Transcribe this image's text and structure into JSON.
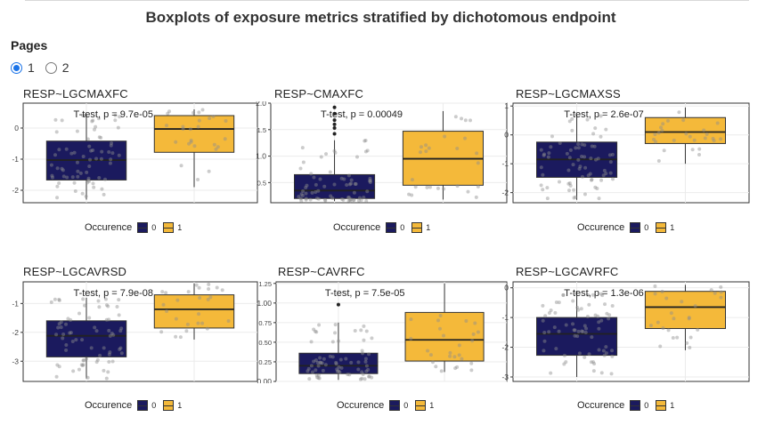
{
  "title": "Boxplots of exposure metrics stratified by dichotomous endpoint",
  "pages": {
    "label": "Pages",
    "options": [
      {
        "label": "1",
        "selected": true
      },
      {
        "label": "2",
        "selected": false
      }
    ]
  },
  "legend": {
    "title": "Occurence",
    "levels": [
      "0",
      "1"
    ]
  },
  "colors": {
    "group0": "#1b1a5e",
    "group1": "#f4b93a",
    "outline": "#333333"
  },
  "chart_data": [
    {
      "type": "boxplot",
      "title": "RESP~LGCMAXFC",
      "annotation": "T-test, p = 9.7e-05",
      "ylim": [
        -2.4,
        0.8
      ],
      "yticks": [
        -2,
        -1,
        0
      ],
      "series": [
        {
          "name": "0",
          "q1": -1.67,
          "median": -1.03,
          "q3": -0.42,
          "whisker_low": -2.3,
          "whisker_high": 0.45
        },
        {
          "name": "1",
          "q1": -0.78,
          "median": -0.03,
          "q3": 0.4,
          "whisker_low": -1.9,
          "whisker_high": 0.6
        }
      ]
    },
    {
      "type": "boxplot",
      "title": "RESP~CMAXFC",
      "annotation": "T-test, p = 0.00049",
      "ylim": [
        0.12,
        2.0
      ],
      "yticks": [
        0.5,
        1.0,
        1.5,
        2.0
      ],
      "series": [
        {
          "name": "0",
          "q1": 0.2,
          "median": 0.35,
          "q3": 0.65,
          "whisker_low": 0.15,
          "whisker_high": 1.3,
          "outliers": [
            1.42,
            1.53,
            1.6,
            1.68,
            1.8,
            1.92
          ]
        },
        {
          "name": "1",
          "q1": 0.45,
          "median": 0.95,
          "q3": 1.47,
          "whisker_low": 0.18,
          "whisker_high": 1.85
        }
      ]
    },
    {
      "type": "boxplot",
      "title": "RESP~LGCMAXSS",
      "annotation": "T-test, p = 2.6e-07",
      "ylim": [
        -2.35,
        1.1
      ],
      "yticks": [
        -2,
        -1,
        0,
        1
      ],
      "series": [
        {
          "name": "0",
          "q1": -1.47,
          "median": -0.85,
          "q3": -0.25,
          "whisker_low": -2.25,
          "whisker_high": 0.7
        },
        {
          "name": "1",
          "q1": -0.3,
          "median": 0.1,
          "q3": 0.6,
          "whisker_low": -1.0,
          "whisker_high": 0.95
        }
      ]
    },
    {
      "type": "boxplot",
      "title": "RESP~LGCAVRSD",
      "annotation": "T-test, p = 7.9e-08",
      "ylim": [
        -3.7,
        -0.25
      ],
      "yticks": [
        -3,
        -2,
        -1
      ],
      "series": [
        {
          "name": "0",
          "q1": -2.85,
          "median": -2.12,
          "q3": -1.6,
          "whisker_low": -3.6,
          "whisker_high": -0.8
        },
        {
          "name": "1",
          "q1": -1.85,
          "median": -1.2,
          "q3": -0.7,
          "whisker_low": -2.25,
          "whisker_high": -0.3
        }
      ]
    },
    {
      "type": "boxplot",
      "title": "RESP~CAVRFC",
      "annotation": "T-test, p = 7.5e-05",
      "ylim": [
        0.0,
        1.27
      ],
      "yticks": [
        0.0,
        0.25,
        0.5,
        0.75,
        1.0,
        1.25
      ],
      "series": [
        {
          "name": "0",
          "q1": 0.1,
          "median": 0.2,
          "q3": 0.36,
          "whisker_low": 0.02,
          "whisker_high": 0.75,
          "outliers": [
            0.98
          ]
        },
        {
          "name": "1",
          "q1": 0.26,
          "median": 0.53,
          "q3": 0.88,
          "whisker_low": 0.12,
          "whisker_high": 1.25
        }
      ]
    },
    {
      "type": "boxplot",
      "title": "RESP~LGCAVRFC",
      "annotation": "T-test, p = 1.3e-06",
      "ylim": [
        -3.15,
        0.2
      ],
      "yticks": [
        -3,
        -2,
        -1,
        0
      ],
      "series": [
        {
          "name": "0",
          "q1": -2.27,
          "median": -1.55,
          "q3": -1.0,
          "whisker_low": -3.0,
          "whisker_high": -0.1
        },
        {
          "name": "1",
          "q1": -1.37,
          "median": -0.65,
          "q3": -0.12,
          "whisker_low": -2.1,
          "whisker_high": 0.1
        }
      ]
    }
  ]
}
